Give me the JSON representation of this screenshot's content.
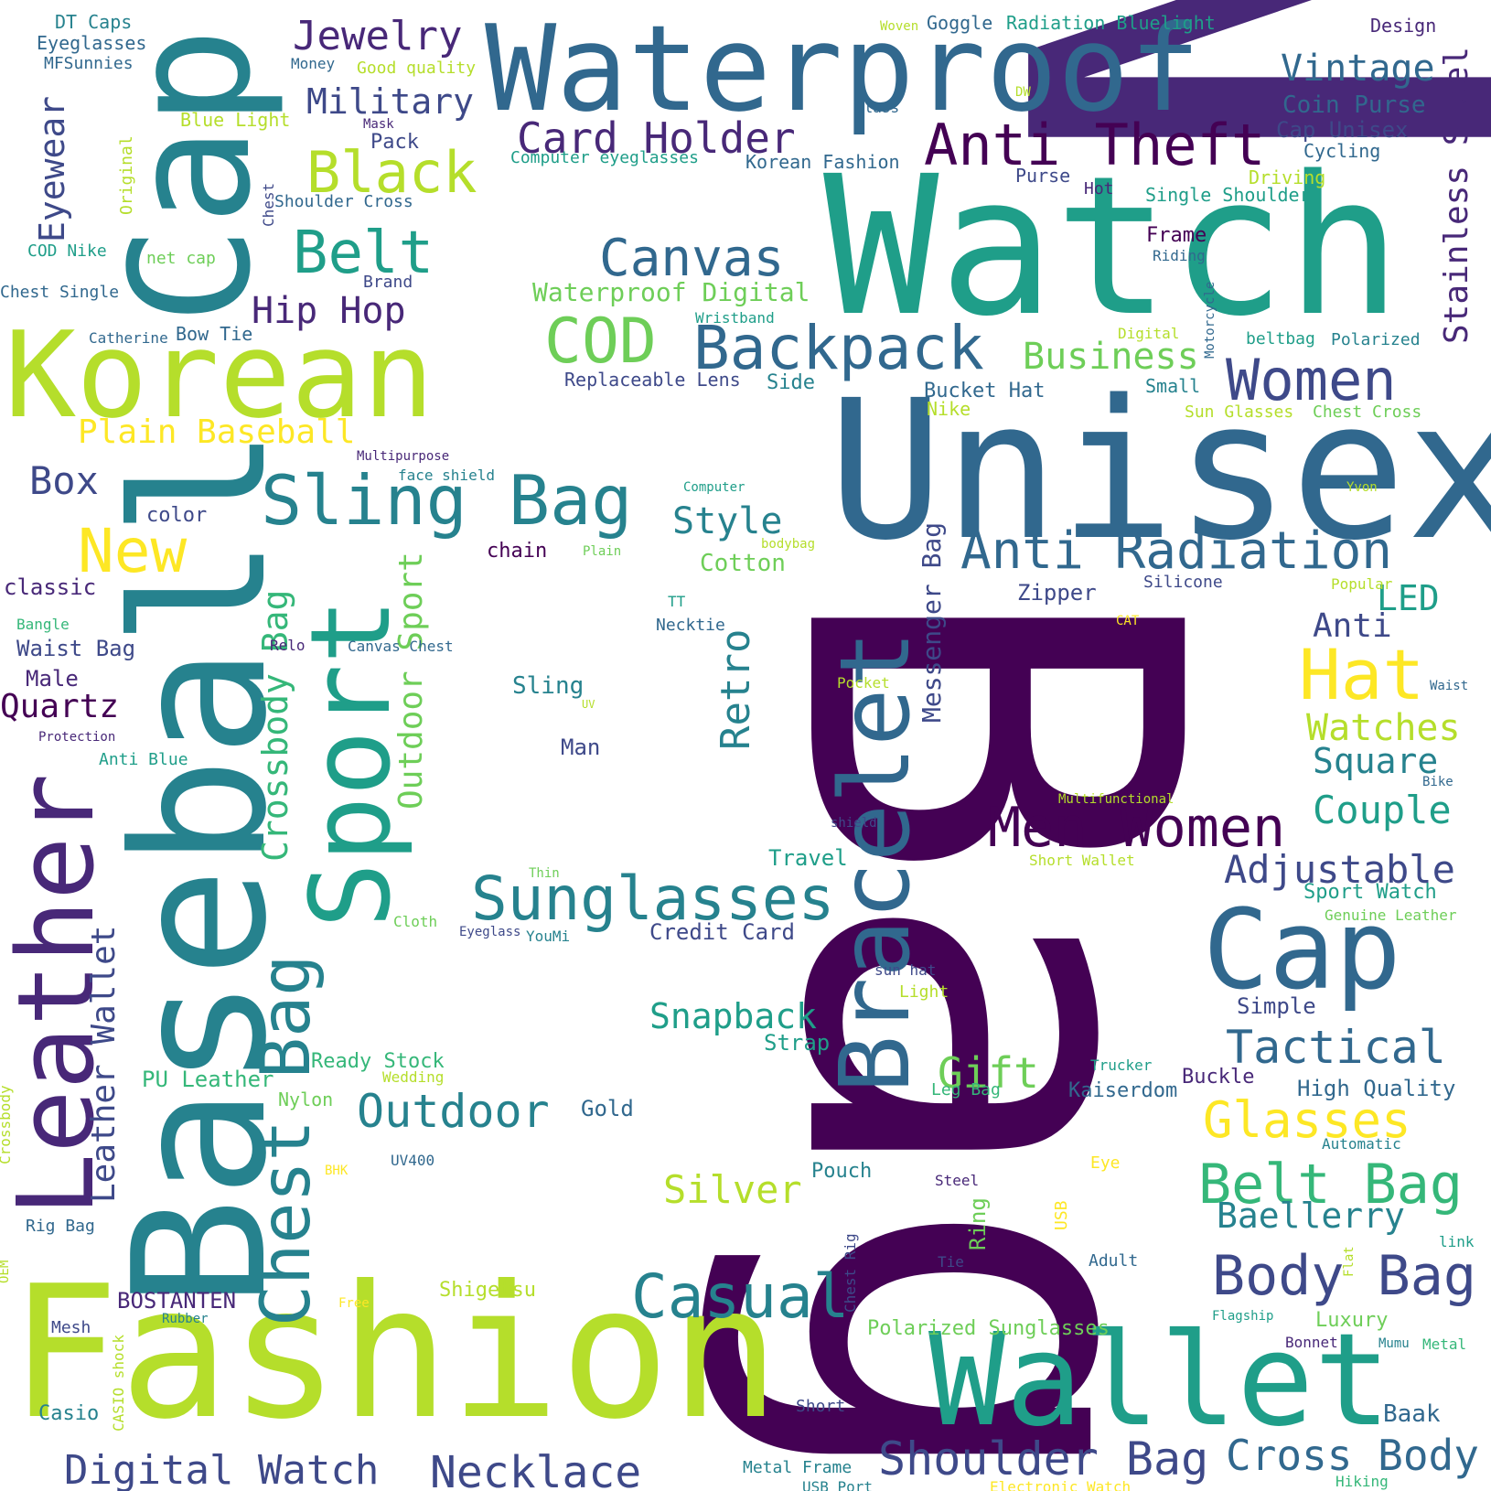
{
  "palette": {
    "v1": "#440154",
    "v2": "#482878",
    "v3": "#3e4989",
    "v4": "#31688e",
    "v5": "#26828e",
    "v6": "#1f9e89",
    "v7": "#35b779",
    "v8": "#6ece58",
    "v9": "#b5de2b",
    "v10": "#fde725"
  },
  "words": [
    {
      "text": "Men"
    },
    {
      "text": "Bag"
    },
    {
      "text": "Watch"
    },
    {
      "text": "Unisex"
    },
    {
      "text": "Fashion"
    },
    {
      "text": "Baseball"
    },
    {
      "text": "Cap"
    },
    {
      "text": "Waterproof"
    },
    {
      "text": "Korean"
    },
    {
      "text": "Leather"
    },
    {
      "text": "Wallet"
    },
    {
      "text": "Sport"
    },
    {
      "text": "Bracelet"
    },
    {
      "text": "Cap"
    },
    {
      "text": "Sling Bag"
    },
    {
      "text": "Backpack"
    },
    {
      "text": "Anti Theft"
    },
    {
      "text": "Chest Bag"
    },
    {
      "text": "Sunglasses"
    },
    {
      "text": "Casual"
    },
    {
      "text": "Black"
    },
    {
      "text": "COD"
    },
    {
      "text": "Canvas"
    },
    {
      "text": "Anti Radiation"
    },
    {
      "text": "Women"
    },
    {
      "text": "Men Women"
    },
    {
      "text": "Hat"
    },
    {
      "text": "Body Bag"
    },
    {
      "text": "Belt Bag"
    },
    {
      "text": "Card Holder"
    },
    {
      "text": "Belt"
    },
    {
      "text": "New"
    },
    {
      "text": "Outdoor"
    },
    {
      "text": "Shoulder Bag"
    },
    {
      "text": "Cross Body"
    },
    {
      "text": "Digital Watch"
    },
    {
      "text": "Necklace"
    },
    {
      "text": "Glasses"
    },
    {
      "text": "Tactical"
    },
    {
      "text": "Silver"
    },
    {
      "text": "Jewelry"
    },
    {
      "text": "Military"
    },
    {
      "text": "Hip Hop"
    },
    {
      "text": "Vintage"
    },
    {
      "text": "Business"
    },
    {
      "text": "Plain Baseball"
    },
    {
      "text": "Box"
    },
    {
      "text": "Quartz"
    },
    {
      "text": "Snapback"
    },
    {
      "text": "Adjustable"
    },
    {
      "text": "Couple"
    },
    {
      "text": "Square"
    },
    {
      "text": "Watches"
    },
    {
      "text": "Gift"
    },
    {
      "text": "Baellerry"
    },
    {
      "text": "Style"
    },
    {
      "text": "Retro"
    },
    {
      "text": "Crossbody Bag"
    },
    {
      "text": "Outdoor Sport"
    },
    {
      "text": "Leather Wallet"
    },
    {
      "text": "Stainless Steel"
    },
    {
      "text": "Eyewear"
    },
    {
      "text": "Messenger Bag"
    },
    {
      "text": "Anti"
    },
    {
      "text": "LED"
    },
    {
      "text": "Waterproof Digital"
    },
    {
      "text": "Coin Purse"
    },
    {
      "text": "Cap Unisex"
    },
    {
      "text": "Sport Watch"
    },
    {
      "text": "High Quality"
    },
    {
      "text": "Polarized Sunglasses"
    },
    {
      "text": "Luxury"
    },
    {
      "text": "Baak"
    },
    {
      "text": "Shigetsu"
    },
    {
      "text": "BOSTANTEN"
    },
    {
      "text": "Ready Stock"
    },
    {
      "text": "PU Leather"
    },
    {
      "text": "Credit Card"
    },
    {
      "text": "Waist Bag"
    },
    {
      "text": "Male"
    },
    {
      "text": "classic"
    },
    {
      "text": "color"
    },
    {
      "text": "Cotton"
    },
    {
      "text": "Zipper"
    },
    {
      "text": "Sling"
    },
    {
      "text": "Man"
    },
    {
      "text": "Travel"
    },
    {
      "text": "Gold"
    },
    {
      "text": "Kaiserdom"
    },
    {
      "text": "Buckle"
    },
    {
      "text": "Simple"
    },
    {
      "text": "Strap"
    },
    {
      "text": "Pouch"
    },
    {
      "text": "Bucket Hat"
    },
    {
      "text": "Replaceable Lens"
    },
    {
      "text": "Korean Fashion"
    },
    {
      "text": "Computer eyeglasses"
    },
    {
      "text": "Single Shoulder"
    },
    {
      "text": "Driving"
    },
    {
      "text": "Purse"
    },
    {
      "text": "Hot"
    },
    {
      "text": "Frame"
    },
    {
      "text": "Riding"
    },
    {
      "text": "Cycling"
    },
    {
      "text": "Polarized"
    },
    {
      "text": "beltbag"
    },
    {
      "text": "Small"
    },
    {
      "text": "Side"
    },
    {
      "text": "Nike"
    },
    {
      "text": "Sun Glasses"
    },
    {
      "text": "Chest Cross"
    },
    {
      "text": "Eyeglasses"
    },
    {
      "text": "DT Caps"
    },
    {
      "text": "MFSunnies"
    },
    {
      "text": "Money"
    },
    {
      "text": "Good quality"
    },
    {
      "text": "Blue Light"
    },
    {
      "text": "Mask"
    },
    {
      "text": "Pack"
    },
    {
      "text": "Shoulder Cross"
    },
    {
      "text": "Chest"
    },
    {
      "text": "COD Nike"
    },
    {
      "text": "net cap"
    },
    {
      "text": "Chest Single"
    },
    {
      "text": "Brand"
    },
    {
      "text": "Bow Tie"
    },
    {
      "text": "Catherine"
    },
    {
      "text": "Original"
    },
    {
      "text": "Woven"
    },
    {
      "text": "Goggle"
    },
    {
      "text": "Radiation Bluelight"
    },
    {
      "text": "Design"
    },
    {
      "text": "Glass"
    },
    {
      "text": "DW"
    },
    {
      "text": "Wristband"
    },
    {
      "text": "Digital"
    },
    {
      "text": "Motorcycle"
    },
    {
      "text": "Multipurpose"
    },
    {
      "text": "face shield"
    },
    {
      "text": "Computer"
    },
    {
      "text": "Yvon"
    },
    {
      "text": "bodybag"
    },
    {
      "text": "Plain"
    },
    {
      "text": "chain"
    },
    {
      "text": "Silicone"
    },
    {
      "text": "Popular"
    },
    {
      "text": "TT"
    },
    {
      "text": "Necktie"
    },
    {
      "text": "CAT"
    },
    {
      "text": "Bangle"
    },
    {
      "text": "Relo"
    },
    {
      "text": "Canvas Chest"
    },
    {
      "text": "Pocket"
    },
    {
      "text": "Waist"
    },
    {
      "text": "UV"
    },
    {
      "text": "Protection"
    },
    {
      "text": "Anti Blue"
    },
    {
      "text": "Bike"
    },
    {
      "text": "Multifunctional"
    },
    {
      "text": "shield"
    },
    {
      "text": "Short Wallet"
    },
    {
      "text": "Thin"
    },
    {
      "text": "Cloth"
    },
    {
      "text": "Eyeglass"
    },
    {
      "text": "YouMi"
    },
    {
      "text": "Genuine Leather"
    },
    {
      "text": "sun hat"
    },
    {
      "text": "Light"
    },
    {
      "text": "Trucker"
    },
    {
      "text": "Leg Bag"
    },
    {
      "text": "Wedding"
    },
    {
      "text": "Nylon"
    },
    {
      "text": "Automatic"
    },
    {
      "text": "Steel"
    },
    {
      "text": "Eye"
    },
    {
      "text": "Ring"
    },
    {
      "text": "USB"
    },
    {
      "text": "Tie"
    },
    {
      "text": "Adult"
    },
    {
      "text": "BHK"
    },
    {
      "text": "UV400"
    },
    {
      "text": "Flat"
    },
    {
      "text": "link"
    },
    {
      "text": "Rig Bag"
    },
    {
      "text": "OEM"
    },
    {
      "text": "Crossbody"
    },
    {
      "text": "Mesh"
    },
    {
      "text": "Rubber"
    },
    {
      "text": "Free"
    },
    {
      "text": "CASIO shock"
    },
    {
      "text": "Casio"
    },
    {
      "text": "Chest Rig"
    },
    {
      "text": "Flagship"
    },
    {
      "text": "Bonnet"
    },
    {
      "text": "Mumu"
    },
    {
      "text": "Metal"
    },
    {
      "text": "Short"
    },
    {
      "text": "Metal Frame"
    },
    {
      "text": "USB Port"
    },
    {
      "text": "Electronic Watch"
    },
    {
      "text": "Hiking"
    }
  ]
}
